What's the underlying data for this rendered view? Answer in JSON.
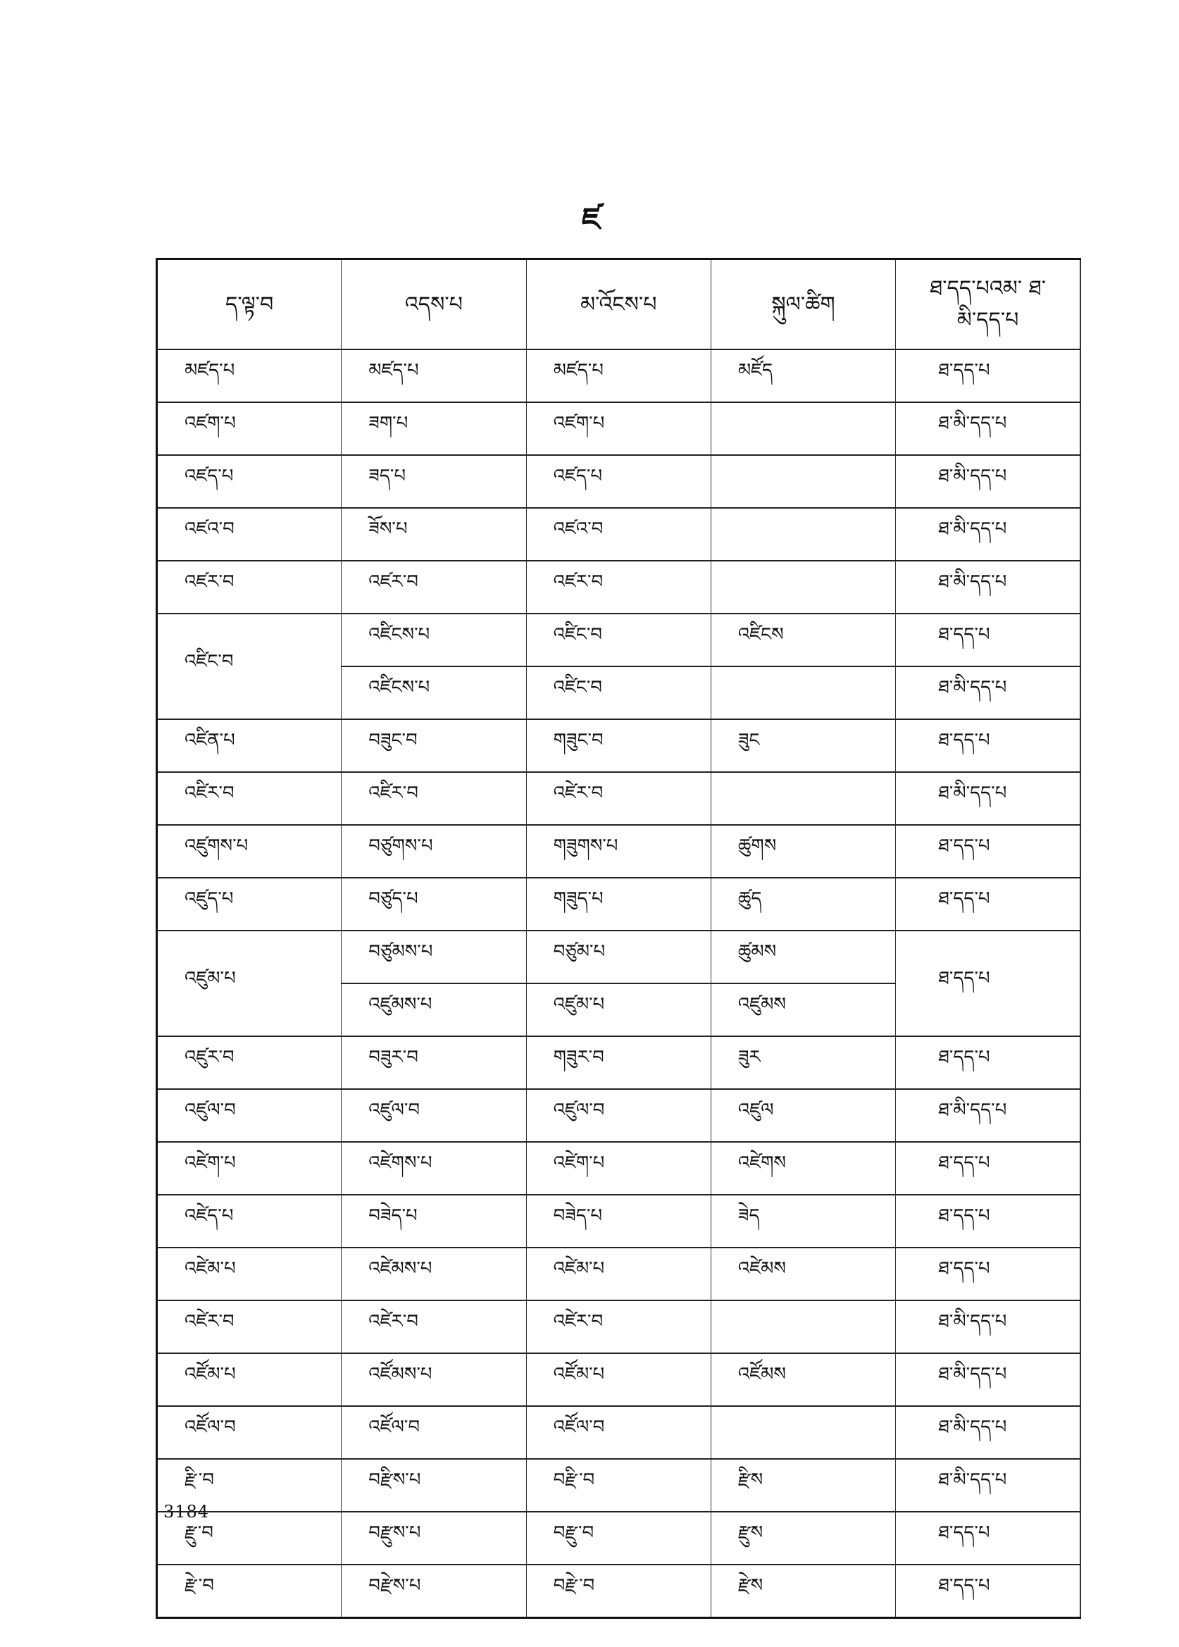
{
  "page_letter": "ཛ",
  "page_number": "3184",
  "headers": [
    "ད་ལྟ་བ",
    "འདས་པ",
    "མ་འོངས་པ",
    "སྐུལ་ཚིག",
    "ཐ་དད་པའམ་ ཐ་མི་དད་པ"
  ],
  "groups": [
    {
      "present": "མཛད་པ",
      "forms": [
        {
          "past": "མཛད་པ",
          "future": "མཛད་པ",
          "imperative": "མཛོད",
          "transitivity": "ཐ་དད་པ"
        }
      ]
    },
    {
      "present": "འཛག་པ",
      "forms": [
        {
          "past": "ཟག་པ",
          "future": "འཛག་པ",
          "imperative": "",
          "transitivity": "ཐ་མི་དད་པ"
        }
      ]
    },
    {
      "present": "འཛད་པ",
      "forms": [
        {
          "past": "ཟད་པ",
          "future": "འཛད་པ",
          "imperative": "",
          "transitivity": "ཐ་མི་དད་པ"
        }
      ]
    },
    {
      "present": "འཛའ་བ",
      "forms": [
        {
          "past": "ཟོས་པ",
          "future": "འཛའ་བ",
          "imperative": "",
          "transitivity": "ཐ་མི་དད་པ"
        }
      ]
    },
    {
      "present": "འཛར་བ",
      "forms": [
        {
          "past": "འཛར་བ",
          "future": "འཛར་བ",
          "imperative": "",
          "transitivity": "ཐ་མི་དད་པ"
        }
      ]
    },
    {
      "present": "འཛིང་བ",
      "forms": [
        {
          "past": "འཛིངས་པ",
          "future": "འཛིང་བ",
          "imperative": "འཛིངས",
          "transitivity": "ཐ་དད་པ"
        },
        {
          "past": "འཛིངས་པ",
          "future": "འཛིང་བ",
          "imperative": "",
          "transitivity": "ཐ་མི་དད་པ"
        }
      ]
    },
    {
      "present": "འཛིན་པ",
      "forms": [
        {
          "past": "བཟུང་བ",
          "future": "གཟུང་བ",
          "imperative": "ཟུང",
          "transitivity": "ཐ་དད་པ"
        }
      ]
    },
    {
      "present": "འཛིར་བ",
      "forms": [
        {
          "past": "འཛིར་བ",
          "future": "འཛེར་བ",
          "imperative": "",
          "transitivity": "ཐ་མི་དད་པ"
        }
      ]
    },
    {
      "present": "འཛུགས་པ",
      "forms": [
        {
          "past": "བཙུགས་པ",
          "future": "གཟུགས་པ",
          "imperative": "ཚུགས",
          "transitivity": "ཐ་དད་པ"
        }
      ]
    },
    {
      "present": "འཛུད་པ",
      "forms": [
        {
          "past": "བཙུད་པ",
          "future": "གཟུད་པ",
          "imperative": "ཚུད",
          "transitivity": "ཐ་དད་པ"
        }
      ]
    },
    {
      "present": "འཛུམ་པ",
      "transitivity": "ཐ་དད་པ",
      "forms": [
        {
          "past": "བཙུམས་པ",
          "future": "བཙུམ་པ",
          "imperative": "ཚུམས"
        },
        {
          "past": "འཛུམས་པ",
          "future": "འཛུམ་པ",
          "imperative": "འཛུམས"
        }
      ]
    },
    {
      "present": "འཛུར་བ",
      "forms": [
        {
          "past": "བཟུར་བ",
          "future": "གཟུར་བ",
          "imperative": "ཟུར",
          "transitivity": "ཐ་དད་པ"
        }
      ]
    },
    {
      "present": "འཛུལ་བ",
      "forms": [
        {
          "past": "འཛུལ་བ",
          "future": "འཛུལ་བ",
          "imperative": "འཛུལ",
          "transitivity": "ཐ་མི་དད་པ"
        }
      ]
    },
    {
      "present": "འཛེག་པ",
      "forms": [
        {
          "past": "འཛེགས་པ",
          "future": "འཛེག་པ",
          "imperative": "འཛེགས",
          "transitivity": "ཐ་དད་པ"
        }
      ]
    },
    {
      "present": "འཛེད་པ",
      "forms": [
        {
          "past": "བཟེད་པ",
          "future": "བཟེད་པ",
          "imperative": "ཟེད",
          "transitivity": "ཐ་དད་པ"
        }
      ]
    },
    {
      "present": "འཛེམ་པ",
      "forms": [
        {
          "past": "འཛེམས་པ",
          "future": "འཛེམ་པ",
          "imperative": "འཛེམས",
          "transitivity": "ཐ་དད་པ"
        }
      ]
    },
    {
      "present": "འཛེར་བ",
      "forms": [
        {
          "past": "འཛེར་བ",
          "future": "འཛེར་བ",
          "imperative": "",
          "transitivity": "ཐ་མི་དད་པ"
        }
      ]
    },
    {
      "present": "འཛོམ་པ",
      "forms": [
        {
          "past": "འཛོམས་པ",
          "future": "འཛོམ་པ",
          "imperative": "འཛོམས",
          "transitivity": "ཐ་མི་དད་པ"
        }
      ]
    },
    {
      "present": "འཛོལ་བ",
      "forms": [
        {
          "past": "འཛོལ་བ",
          "future": "འཛོལ་བ",
          "imperative": "",
          "transitivity": "ཐ་མི་དད་པ"
        }
      ]
    },
    {
      "present": "རྫི་བ",
      "forms": [
        {
          "past": "བརྫིས་པ",
          "future": "བརྫི་བ",
          "imperative": "རྫིས",
          "transitivity": "ཐ་མི་དད་པ"
        }
      ]
    },
    {
      "present": "རྫུ་བ",
      "forms": [
        {
          "past": "བརྫུས་པ",
          "future": "བརྫུ་བ",
          "imperative": "རྫུས",
          "transitivity": "ཐ་དད་པ"
        }
      ]
    },
    {
      "present": "རྫེ་བ",
      "forms": [
        {
          "past": "བརྫེས་པ",
          "future": "བརྫེ་བ",
          "imperative": "རྫེས",
          "transitivity": "ཐ་དད་པ"
        }
      ]
    }
  ]
}
